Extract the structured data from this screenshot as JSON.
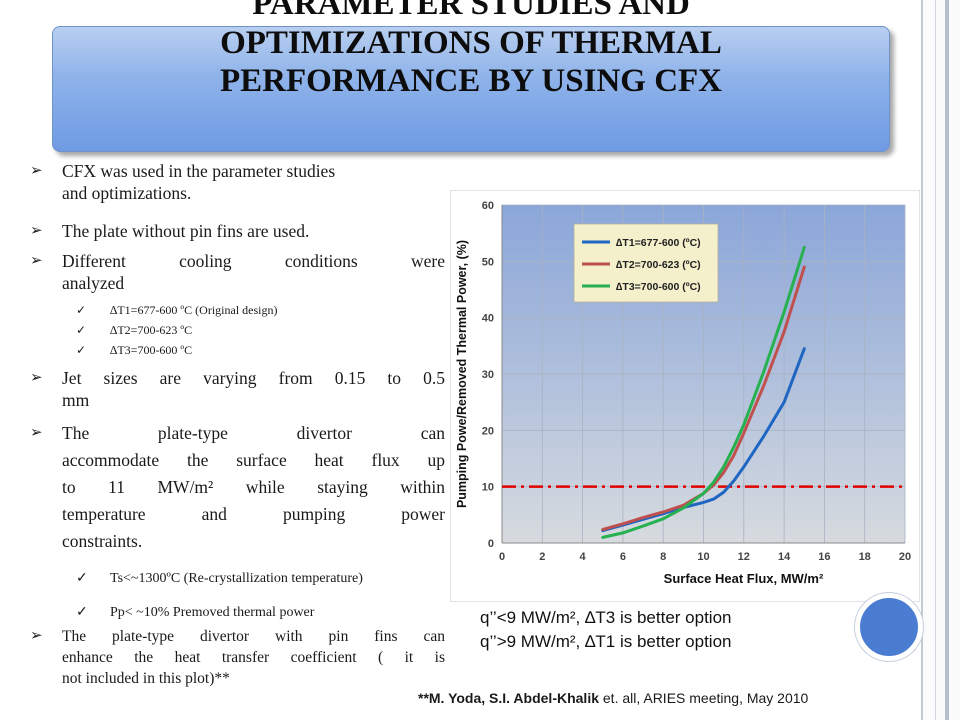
{
  "slide": {
    "title_lines": [
      "PARAMETER STUDIES AND",
      "OPTIMIZATIONS OF THERMAL",
      "PERFORMANCE BY USING CFX"
    ],
    "bullets": [
      {
        "lines": [
          "CFX was used in the parameter studies",
          "and optimizations."
        ]
      },
      {
        "lines": [
          "The plate without pin fins are used."
        ]
      },
      {
        "lines": [
          "Different cooling conditions were",
          "analyzed"
        ]
      },
      {
        "lines": [
          "Jet sizes are varying from 0.15 to 0.5",
          "mm"
        ]
      },
      {
        "lines": [
          "The plate-type divertor can",
          "accommodate the surface heat flux up",
          "to 11 MW/m² while staying within",
          "temperature and pumping power",
          "constraints."
        ]
      },
      {
        "lines": [
          "The plate-type divertor with pin fins can",
          "enhance the heat transfer coefficient ( it is",
          "not included in this plot)**"
        ]
      }
    ],
    "sub_bullets_conditions": [
      "∆T1=677-600 ºC (Original design)",
      "∆T2=700-623 ºC",
      "∆T3=700-600 ºC"
    ],
    "constraints": [
      "Ts<~1300ºC (Re-crystallization temperature)",
      "Pp< ~10% Premoved thermal power"
    ],
    "caption": [
      "q’’<9 MW/m², ∆T3 is better option",
      "q’’>9 MW/m², ∆T1 is better option"
    ],
    "footnote_author": "**M. Yoda, S.I. Abdel-Khalik",
    "footnote_rest": " et. all, ARIES meeting, May 2010",
    "colors": {
      "title_box": "#8fb3ea",
      "series1": "#1f66c2",
      "series2": "#c0504d",
      "series3": "#26b050",
      "limit": "#e00000"
    }
  },
  "chart_data": {
    "type": "line",
    "xlabel": "Surface Heat Flux, MW/m²",
    "ylabel": "Pumping Powe/Removed Thermal Power, (%)",
    "xlim": [
      0,
      20
    ],
    "ylim": [
      0,
      60
    ],
    "xticks": [
      "0",
      "2",
      "4",
      "6",
      "8",
      "10",
      "12",
      "14",
      "16",
      "18",
      "20"
    ],
    "yticks": [
      "0",
      "10",
      "20",
      "30",
      "40",
      "50",
      "60"
    ],
    "grid": true,
    "legend": "top-left",
    "limit_line": 10,
    "series": [
      {
        "name": "∆T1=677-600 (ºC)",
        "color": "#1f66c2",
        "x": [
          5,
          6,
          7,
          8,
          9,
          10,
          10.5,
          11,
          11.5,
          12,
          13,
          14,
          15
        ],
        "y": [
          2.2,
          3.2,
          4.2,
          5.2,
          6.3,
          7.2,
          7.8,
          9,
          11,
          13.5,
          19,
          25,
          34.5
        ]
      },
      {
        "name": "∆T2=700-623 (ºC)",
        "color": "#c0504d",
        "x": [
          5,
          6,
          7,
          8,
          9,
          10,
          10.5,
          11,
          11.5,
          12,
          13,
          14,
          15
        ],
        "y": [
          2.4,
          3.4,
          4.5,
          5.5,
          6.7,
          8.8,
          10.3,
          12.5,
          15.5,
          19.5,
          28,
          37.5,
          49
        ]
      },
      {
        "name": "∆T3=700-600 (ºC)",
        "color": "#26b050",
        "x": [
          5,
          6,
          7,
          8,
          9,
          10,
          10.5,
          11,
          11.5,
          12,
          13,
          14,
          15
        ],
        "y": [
          1,
          1.8,
          3,
          4.3,
          6.2,
          8.8,
          10.8,
          13.5,
          17,
          21,
          30.5,
          41,
          52.5
        ]
      }
    ]
  }
}
